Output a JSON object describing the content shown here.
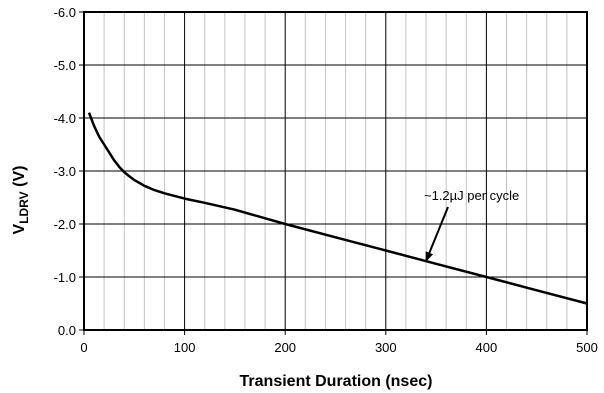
{
  "chart_data": {
    "type": "line",
    "xlabel": "Transient Duration (nsec)",
    "ylabel_main": "V",
    "ylabel_sub": "LDRV",
    "ylabel_unit": " (V)",
    "xlim": [
      0,
      500
    ],
    "ylim": [
      0,
      -6
    ],
    "x_ticks": [
      0,
      100,
      200,
      300,
      400,
      500
    ],
    "x_tick_labels": [
      "0",
      "100",
      "200",
      "300",
      "400",
      "500"
    ],
    "y_ticks": [
      0,
      -1,
      -2,
      -3,
      -4,
      -5,
      -6
    ],
    "y_tick_labels": [
      "0.0",
      "-1.0",
      "-2.0",
      "-3.0",
      "-4.0",
      "-5.0",
      "-6.0"
    ],
    "grid": true,
    "minor_grid_x_step": 20,
    "series": [
      {
        "x": [
          5,
          10,
          15,
          20,
          25,
          30,
          35,
          40,
          45,
          50,
          60,
          70,
          80,
          100,
          120,
          150,
          200,
          250,
          300,
          350,
          400,
          450,
          500
        ],
        "y": [
          -4.1,
          -3.85,
          -3.65,
          -3.5,
          -3.35,
          -3.2,
          -3.08,
          -2.98,
          -2.9,
          -2.83,
          -2.72,
          -2.64,
          -2.58,
          -2.48,
          -2.4,
          -2.27,
          -2.0,
          -1.75,
          -1.5,
          -1.25,
          -1.0,
          -0.75,
          -0.5
        ]
      }
    ],
    "annotation": {
      "text": "~1.2µJ per cycle",
      "arrow_to": [
        340,
        -1.3
      ]
    },
    "line_color": "#000000"
  }
}
